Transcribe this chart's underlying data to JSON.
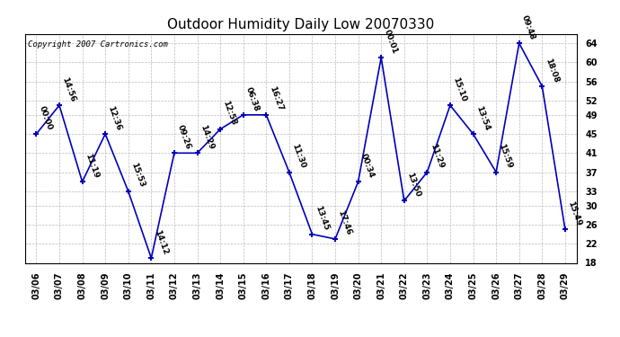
{
  "title": "Outdoor Humidity Daily Low 20070330",
  "copyright": "Copyright 2007 Cartronics.com",
  "dates": [
    "03/06",
    "03/07",
    "03/08",
    "03/09",
    "03/10",
    "03/11",
    "03/12",
    "03/13",
    "03/14",
    "03/15",
    "03/16",
    "03/17",
    "03/18",
    "03/19",
    "03/20",
    "03/21",
    "03/22",
    "03/23",
    "03/24",
    "03/25",
    "03/26",
    "03/27",
    "03/28",
    "03/29"
  ],
  "values": [
    45,
    51,
    35,
    45,
    33,
    19,
    41,
    41,
    46,
    49,
    49,
    37,
    24,
    23,
    35,
    61,
    31,
    37,
    51,
    45,
    37,
    64,
    55,
    25
  ],
  "times": [
    "00:00",
    "14:56",
    "11:19",
    "12:36",
    "15:53",
    "14:12",
    "09:26",
    "14:29",
    "12:58",
    "06:38",
    "16:27",
    "11:30",
    "13:45",
    "17:46",
    "00:34",
    "00:01",
    "13:50",
    "11:29",
    "15:10",
    "13:54",
    "15:59",
    "09:48",
    "18:08",
    "15:49"
  ],
  "line_color": "#0000bb",
  "marker_color": "#0000bb",
  "background_color": "#ffffff",
  "grid_color": "#bbbbbb",
  "ylim": [
    18,
    66
  ],
  "yticks": [
    18,
    22,
    26,
    30,
    33,
    37,
    41,
    45,
    49,
    52,
    56,
    60,
    64
  ],
  "title_fontsize": 11,
  "label_fontsize": 6.5,
  "copyright_fontsize": 6.5,
  "tick_fontsize": 7
}
